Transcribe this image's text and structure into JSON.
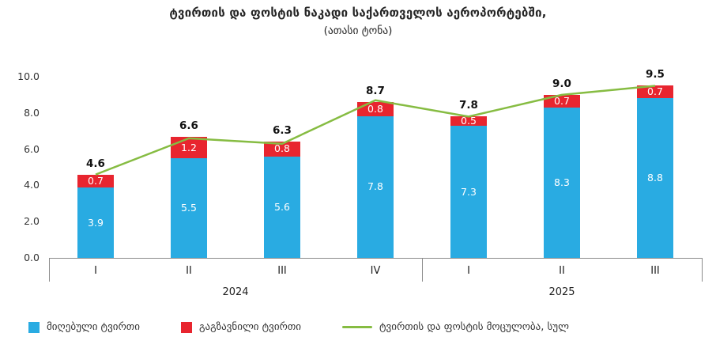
{
  "title": "ტვირთის და ფოსტის ნაკადი საქართველოს აეროპორტებში,",
  "subtitle": "(ათასი ტონა)",
  "chart_data": {
    "type": "bar",
    "stacked": true,
    "line_overlay": true,
    "categories": [
      "I",
      "II",
      "III",
      "IV",
      "I",
      "II",
      "III"
    ],
    "groups": [
      {
        "label": "2024",
        "span": 4
      },
      {
        "label": "2025",
        "span": 3
      }
    ],
    "series": [
      {
        "name": "მიღებული ტვირთი",
        "color": "#29ABE2",
        "values": [
          3.9,
          5.5,
          5.6,
          7.8,
          7.3,
          8.3,
          8.8
        ]
      },
      {
        "name": "გაგზავნილი ტვირთი",
        "color": "#E8252F",
        "values": [
          0.7,
          1.2,
          0.8,
          0.8,
          0.5,
          0.7,
          0.7
        ]
      }
    ],
    "line": {
      "name": "ტვირთის და ფოსტის მოცულობა, სულ",
      "color": "#86BC42",
      "values": [
        4.6,
        6.6,
        6.3,
        8.7,
        7.8,
        9.0,
        9.5
      ]
    },
    "total_labels": [
      "4.6",
      "6.6",
      "6.3",
      "8.7",
      "7.8",
      "9.0",
      "9.5"
    ],
    "ylim": [
      0,
      10
    ],
    "yticks": [
      "10.0",
      "8.0",
      "6.0",
      "4.0",
      "2.0",
      "0.0"
    ],
    "grid": false,
    "legend_position": "bottom"
  }
}
